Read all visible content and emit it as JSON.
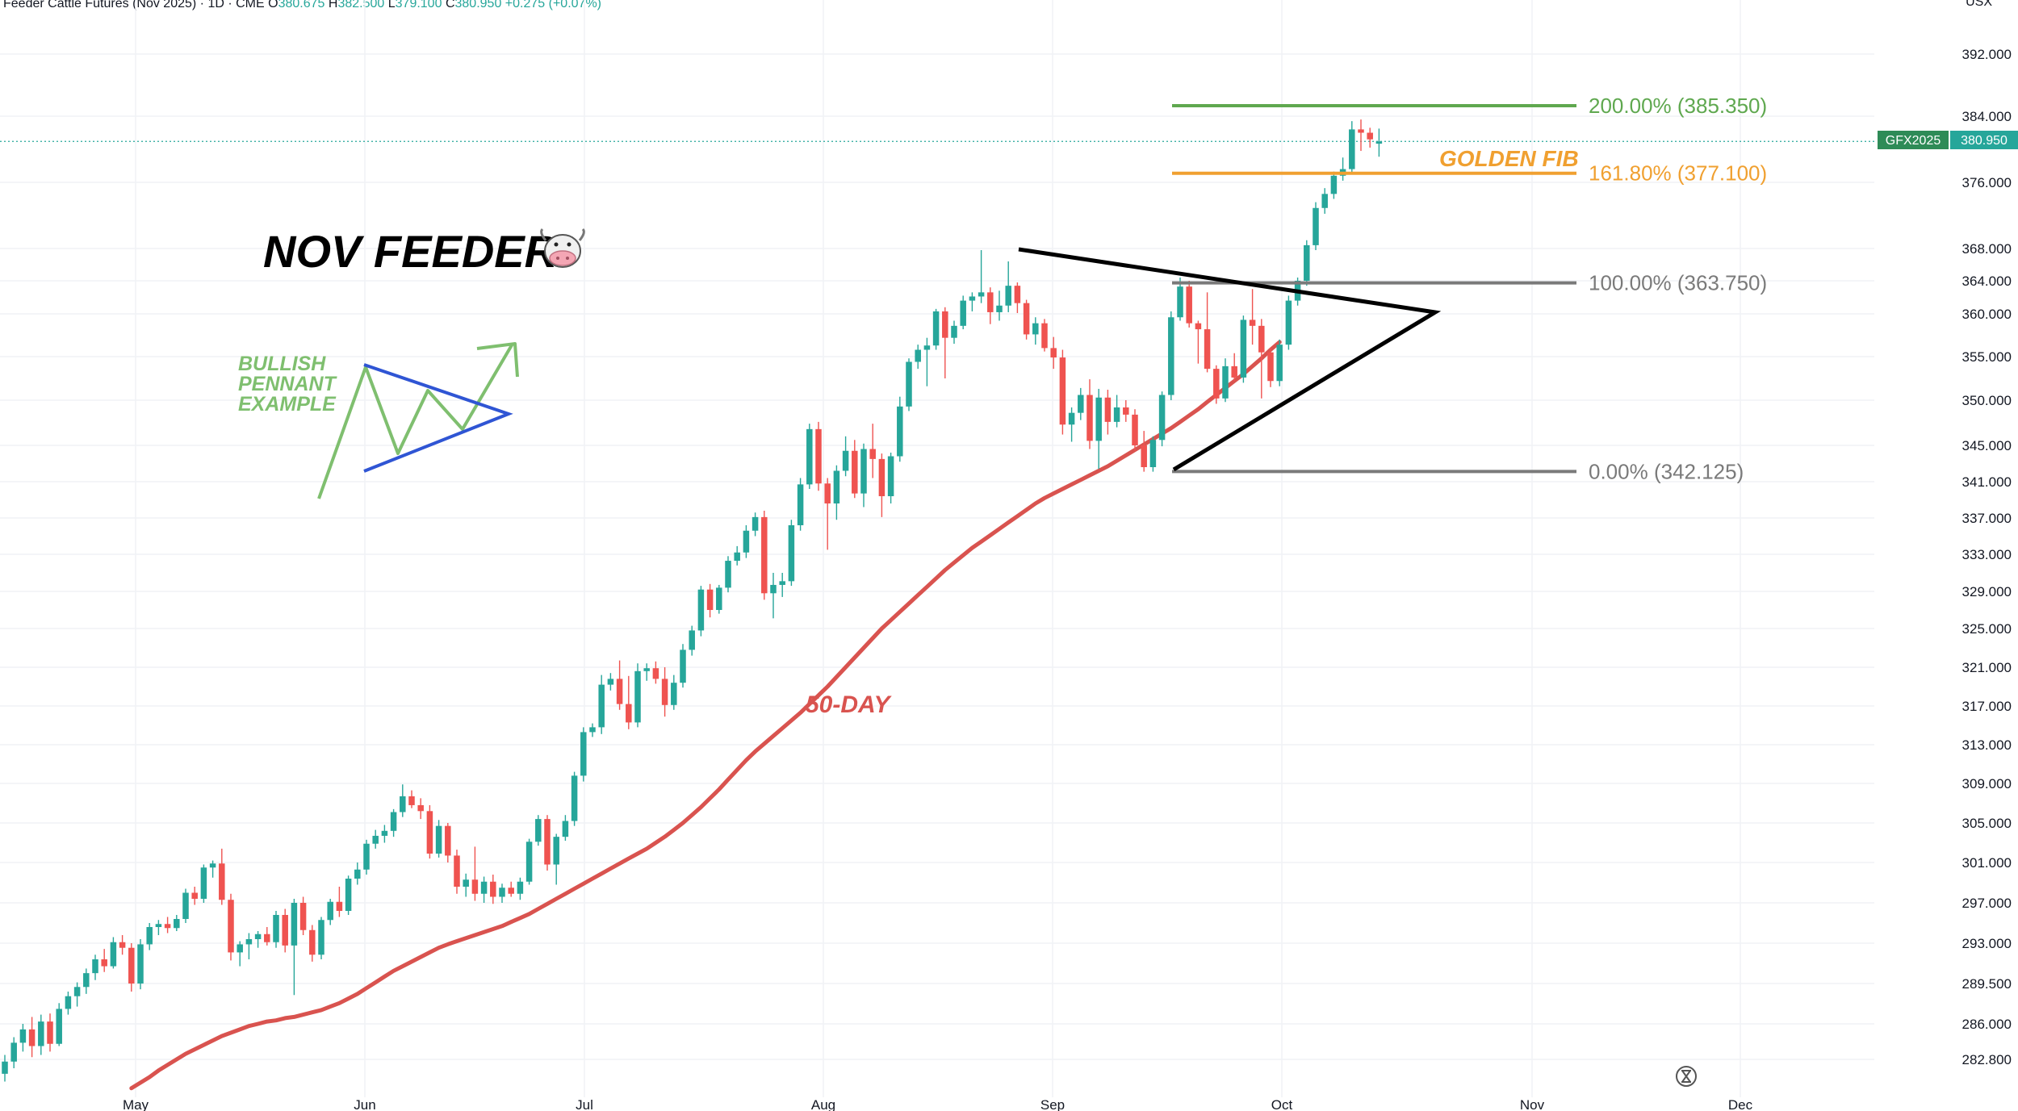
{
  "header": {
    "title": "Feeder Cattle Futures (Nov 2025) · 1D · CME",
    "o_label": "O",
    "o": "380.675",
    "h_label": "H",
    "h": "382.500",
    "l_label": "L",
    "l": "379.100",
    "c_label": "C",
    "c": "380.950",
    "change": "+0.275 (+0.07%)",
    "unit": "USX"
  },
  "price_tag": {
    "symbol": "GFX2025",
    "price": "380.950"
  },
  "annotations": {
    "title": "NOV FEEDER",
    "title_emoji": "🐮",
    "pennant_label_1": "BULLISH",
    "pennant_label_2": "PENNANT",
    "pennant_label_3": "EXAMPLE",
    "ma_label": "50-DAY",
    "golden_fib": "GOLDEN FIB"
  },
  "colors": {
    "up": "#26a69a",
    "down": "#ef5350",
    "ma": "#d9534f",
    "fib200": "#5fa84f",
    "fib161": "#f0a030",
    "fib_gray": "#7a7a7a",
    "pennant_example": "#2f55d4",
    "pennant_arrow": "#7fbf6f"
  },
  "chart_data": {
    "type": "candlestick",
    "title": "Feeder Cattle Futures (Nov 2025) · 1D · CME",
    "y_axis": {
      "ticks": [
        "392.000",
        "384.000",
        "376.000",
        "368.000",
        "364.000",
        "360.000",
        "355.000",
        "350.000",
        "345.000",
        "341.000",
        "337.000",
        "333.000",
        "329.000",
        "325.000",
        "321.000",
        "317.000",
        "313.000",
        "309.000",
        "305.000",
        "301.000",
        "297.000",
        "293.000",
        "289.500",
        "286.000",
        "282.800"
      ],
      "unit": "USX"
    },
    "x_axis": {
      "labels": [
        "May",
        "Jun",
        "Jul",
        "Aug",
        "Sep",
        "Oct",
        "Nov",
        "Dec"
      ]
    },
    "fib_levels": [
      {
        "label": "200.00% (385.350)",
        "value": 385.35
      },
      {
        "label": "161.80% (377.100)",
        "value": 377.1
      },
      {
        "label": "100.00% (363.750)",
        "value": 363.75
      },
      {
        "label": "0.00% (342.125)",
        "value": 342.125
      }
    ],
    "last_price": 380.95,
    "series": [
      {
        "name": "GFX2025",
        "ohlc": [
          [
            281.5,
            283.2,
            280.8,
            282.6
          ],
          [
            282.6,
            284.8,
            282.0,
            284.3
          ],
          [
            284.3,
            286.0,
            283.5,
            285.5
          ],
          [
            285.5,
            286.6,
            283.0,
            284.0
          ],
          [
            284.0,
            286.8,
            283.2,
            286.2
          ],
          [
            286.2,
            286.9,
            283.5,
            284.2
          ],
          [
            284.2,
            287.8,
            284.0,
            287.3
          ],
          [
            287.3,
            288.8,
            286.8,
            288.4
          ],
          [
            288.4,
            289.6,
            287.5,
            289.2
          ],
          [
            289.2,
            290.8,
            288.6,
            290.4
          ],
          [
            290.4,
            292.0,
            289.8,
            291.6
          ],
          [
            291.6,
            292.5,
            290.5,
            291.0
          ],
          [
            291.0,
            293.6,
            290.8,
            293.1
          ],
          [
            293.1,
            293.8,
            292.0,
            292.6
          ],
          [
            292.6,
            293.0,
            288.8,
            289.5
          ],
          [
            289.5,
            293.4,
            289.0,
            292.9
          ],
          [
            292.9,
            295.0,
            292.4,
            294.6
          ],
          [
            294.6,
            295.3,
            293.8,
            294.9
          ],
          [
            294.9,
            295.6,
            294.0,
            294.5
          ],
          [
            294.5,
            295.8,
            294.2,
            295.4
          ],
          [
            295.4,
            298.4,
            295.0,
            298.0
          ],
          [
            298.0,
            298.6,
            296.8,
            297.4
          ],
          [
            297.4,
            300.8,
            297.0,
            300.5
          ],
          [
            300.5,
            301.2,
            299.5,
            300.9
          ],
          [
            300.9,
            302.4,
            296.8,
            297.3
          ],
          [
            297.3,
            297.9,
            291.5,
            292.2
          ],
          [
            292.2,
            293.2,
            291.0,
            292.9
          ],
          [
            292.9,
            294.0,
            291.6,
            293.4
          ],
          [
            293.4,
            294.2,
            292.6,
            293.9
          ],
          [
            293.9,
            294.6,
            292.8,
            293.1
          ],
          [
            293.1,
            296.2,
            292.6,
            295.8
          ],
          [
            295.8,
            296.4,
            292.2,
            292.8
          ],
          [
            292.8,
            297.4,
            288.5,
            297.0
          ],
          [
            297.0,
            297.6,
            293.8,
            294.3
          ],
          [
            294.3,
            294.8,
            291.4,
            292.0
          ],
          [
            292.0,
            295.6,
            291.6,
            295.3
          ],
          [
            295.3,
            297.4,
            294.8,
            297.1
          ],
          [
            297.1,
            298.6,
            295.6,
            296.2
          ],
          [
            296.2,
            299.7,
            295.8,
            299.4
          ],
          [
            299.4,
            301.0,
            298.8,
            300.3
          ],
          [
            300.3,
            303.3,
            299.8,
            302.9
          ],
          [
            302.9,
            304.3,
            302.4,
            303.7
          ],
          [
            303.7,
            304.8,
            303.0,
            304.2
          ],
          [
            304.2,
            306.4,
            303.6,
            306.1
          ],
          [
            306.1,
            308.9,
            305.6,
            307.7
          ],
          [
            307.7,
            308.3,
            306.5,
            306.8
          ],
          [
            306.8,
            307.5,
            305.4,
            306.2
          ],
          [
            306.2,
            306.8,
            301.4,
            301.9
          ],
          [
            301.9,
            305.3,
            301.5,
            304.7
          ],
          [
            304.7,
            305.0,
            301.0,
            301.7
          ],
          [
            301.7,
            302.3,
            297.9,
            298.6
          ],
          [
            298.6,
            299.9,
            297.6,
            299.3
          ],
          [
            299.3,
            302.6,
            297.2,
            297.9
          ],
          [
            297.9,
            299.6,
            297.0,
            299.1
          ],
          [
            299.1,
            299.8,
            296.9,
            297.6
          ],
          [
            297.6,
            298.9,
            297.0,
            298.5
          ],
          [
            298.5,
            299.1,
            297.6,
            297.9
          ],
          [
            297.9,
            299.5,
            297.3,
            299.1
          ],
          [
            299.1,
            303.4,
            298.8,
            303.1
          ],
          [
            303.1,
            305.8,
            302.7,
            305.4
          ],
          [
            305.4,
            305.8,
            300.2,
            300.8
          ],
          [
            300.8,
            303.9,
            298.8,
            303.6
          ],
          [
            303.6,
            305.8,
            303.2,
            305.2
          ],
          [
            305.2,
            310.2,
            304.7,
            309.8
          ],
          [
            309.8,
            314.8,
            309.2,
            314.3
          ],
          [
            314.3,
            315.2,
            313.8,
            314.8
          ],
          [
            314.8,
            320.2,
            314.1,
            319.2
          ],
          [
            319.2,
            320.4,
            318.6,
            319.8
          ],
          [
            319.8,
            321.7,
            316.6,
            317.2
          ],
          [
            317.2,
            320.1,
            314.6,
            315.3
          ],
          [
            315.3,
            321.4,
            314.8,
            320.6
          ],
          [
            320.6,
            321.4,
            319.6,
            320.9
          ],
          [
            320.9,
            321.6,
            319.3,
            319.8
          ],
          [
            319.8,
            321.0,
            315.9,
            317.1
          ],
          [
            317.1,
            320.2,
            316.6,
            319.4
          ],
          [
            319.4,
            323.4,
            318.9,
            322.8
          ],
          [
            322.8,
            325.3,
            322.2,
            324.8
          ],
          [
            324.8,
            329.6,
            324.2,
            329.2
          ],
          [
            329.2,
            329.8,
            326.2,
            327.0
          ],
          [
            327.0,
            329.7,
            326.6,
            329.4
          ],
          [
            329.4,
            332.8,
            328.9,
            332.3
          ],
          [
            332.3,
            333.9,
            331.8,
            333.2
          ],
          [
            333.2,
            336.2,
            332.6,
            335.6
          ],
          [
            335.6,
            337.6,
            335.0,
            337.1
          ],
          [
            337.1,
            337.8,
            328.1,
            328.8
          ],
          [
            328.8,
            331.0,
            326.1,
            329.7
          ],
          [
            329.7,
            331.0,
            328.4,
            330.1
          ],
          [
            330.1,
            336.8,
            329.6,
            336.2
          ],
          [
            336.2,
            341.4,
            335.6,
            340.7
          ],
          [
            340.7,
            347.4,
            340.2,
            346.8
          ],
          [
            346.8,
            347.6,
            340.0,
            340.8
          ],
          [
            340.8,
            341.4,
            333.5,
            338.6
          ],
          [
            338.6,
            342.8,
            336.8,
            342.2
          ],
          [
            342.2,
            346.0,
            341.6,
            344.4
          ],
          [
            344.4,
            345.6,
            339.2,
            339.7
          ],
          [
            339.7,
            345.2,
            338.2,
            344.6
          ],
          [
            344.6,
            347.4,
            341.4,
            343.5
          ],
          [
            343.5,
            344.1,
            337.1,
            339.4
          ],
          [
            339.4,
            344.2,
            338.6,
            343.8
          ],
          [
            343.8,
            350.4,
            343.2,
            349.3
          ],
          [
            349.3,
            354.8,
            348.8,
            354.4
          ],
          [
            354.4,
            356.4,
            353.6,
            355.8
          ],
          [
            355.8,
            357.2,
            351.6,
            356.3
          ],
          [
            356.3,
            360.6,
            355.8,
            360.3
          ],
          [
            360.3,
            360.8,
            352.5,
            357.2
          ],
          [
            357.2,
            359.2,
            356.5,
            358.6
          ],
          [
            358.6,
            362.2,
            358.2,
            361.6
          ],
          [
            361.6,
            362.6,
            360.3,
            362.1
          ],
          [
            362.1,
            367.8,
            361.3,
            362.6
          ],
          [
            362.6,
            363.2,
            358.8,
            360.2
          ],
          [
            360.2,
            362.8,
            359.2,
            361.0
          ],
          [
            361.0,
            366.4,
            360.2,
            363.4
          ],
          [
            363.4,
            363.8,
            360.1,
            361.3
          ],
          [
            361.3,
            361.7,
            357.0,
            357.6
          ],
          [
            357.6,
            359.6,
            356.4,
            358.9
          ],
          [
            358.9,
            359.4,
            355.6,
            356.0
          ],
          [
            356.0,
            357.3,
            353.6,
            354.9
          ],
          [
            354.9,
            355.8,
            346.2,
            347.3
          ],
          [
            347.3,
            349.2,
            345.4,
            348.6
          ],
          [
            348.6,
            351.4,
            347.8,
            350.6
          ],
          [
            350.6,
            352.4,
            344.6,
            345.5
          ],
          [
            345.5,
            351.3,
            342.4,
            350.3
          ],
          [
            350.3,
            351.2,
            346.2,
            347.6
          ],
          [
            347.6,
            350.6,
            347.0,
            349.2
          ],
          [
            349.2,
            350.0,
            347.6,
            348.4
          ],
          [
            348.4,
            349.0,
            344.4,
            345.0
          ],
          [
            345.0,
            346.6,
            342.1,
            342.6
          ],
          [
            342.6,
            346.0,
            342.1,
            345.6
          ],
          [
            345.6,
            351.0,
            344.9,
            350.6
          ],
          [
            350.6,
            360.3,
            350.0,
            359.6
          ],
          [
            359.6,
            364.4,
            359.2,
            363.3
          ],
          [
            363.3,
            364.0,
            358.4,
            358.9
          ],
          [
            358.9,
            359.2,
            354.2,
            358.2
          ],
          [
            358.2,
            362.6,
            353.2,
            353.6
          ],
          [
            353.6,
            354.0,
            349.6,
            350.2
          ],
          [
            350.2,
            354.8,
            349.8,
            353.9
          ],
          [
            353.9,
            355.4,
            352.2,
            352.6
          ],
          [
            352.6,
            359.8,
            352.0,
            359.3
          ],
          [
            359.3,
            363.0,
            356.4,
            358.6
          ],
          [
            358.6,
            359.4,
            350.2,
            355.5
          ],
          [
            355.5,
            356.0,
            351.5,
            352.2
          ],
          [
            352.2,
            357.0,
            351.6,
            356.4
          ],
          [
            356.4,
            362.2,
            355.8,
            361.6
          ],
          [
            361.6,
            364.4,
            361.0,
            364.0
          ],
          [
            364.0,
            369.0,
            363.4,
            368.4
          ],
          [
            368.4,
            373.6,
            367.8,
            372.9
          ],
          [
            372.9,
            375.3,
            372.2,
            374.6
          ],
          [
            374.6,
            377.3,
            374.0,
            376.8
          ],
          [
            376.8,
            379.0,
            376.2,
            377.6
          ],
          [
            377.6,
            383.4,
            377.0,
            382.4
          ],
          [
            382.4,
            383.6,
            379.8,
            382.0
          ],
          [
            382.0,
            382.6,
            380.2,
            381.2
          ],
          [
            380.675,
            382.5,
            379.1,
            380.95
          ]
        ]
      },
      {
        "name": "50-DAY",
        "values": [
          280.2,
          280.7,
          281.2,
          281.8,
          282.3,
          282.8,
          283.3,
          283.7,
          284.1,
          284.5,
          284.9,
          285.2,
          285.5,
          285.8,
          286.0,
          286.2,
          286.3,
          286.5,
          286.6,
          286.8,
          287.0,
          287.2,
          287.5,
          287.8,
          288.2,
          288.6,
          289.1,
          289.6,
          290.1,
          290.6,
          291.0,
          291.4,
          291.8,
          292.2,
          292.6,
          292.9,
          293.2,
          293.5,
          293.8,
          294.1,
          294.4,
          294.7,
          295.1,
          295.5,
          295.9,
          296.4,
          296.9,
          297.4,
          297.9,
          298.4,
          298.9,
          299.4,
          299.9,
          300.4,
          300.9,
          301.4,
          301.9,
          302.4,
          303.0,
          303.6,
          304.3,
          305.0,
          305.8,
          306.6,
          307.5,
          308.4,
          309.4,
          310.4,
          311.4,
          312.3,
          313.1,
          313.9,
          314.7,
          315.5,
          316.3,
          317.2,
          318.1,
          319.0,
          320.0,
          321.0,
          322.0,
          323.0,
          324.0,
          325.0,
          325.9,
          326.8,
          327.7,
          328.6,
          329.5,
          330.4,
          331.3,
          332.1,
          332.9,
          333.7,
          334.4,
          335.1,
          335.8,
          336.5,
          337.2,
          337.9,
          338.6,
          339.2,
          339.7,
          340.2,
          340.7,
          341.2,
          341.7,
          342.2,
          342.7,
          343.3,
          343.9,
          344.5,
          345.1,
          345.7,
          346.3,
          346.9,
          347.6,
          348.3,
          349.0,
          349.8,
          350.6,
          351.4,
          352.2,
          353.0,
          353.9,
          354.8,
          355.8,
          356.7
        ]
      }
    ]
  }
}
